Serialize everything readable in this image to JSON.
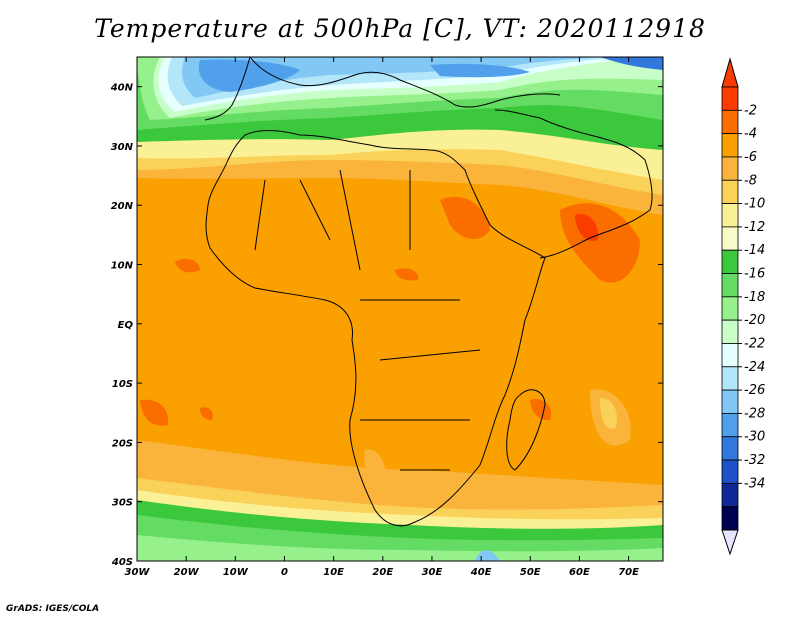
{
  "title": "Temperature at 500hPa [C], VT: 2020112918",
  "credit": "GrADS: IGES/COLA",
  "map": {
    "region": "Africa",
    "projection": "latlon",
    "lon_range": [
      -30,
      77
    ],
    "lat_range": [
      -40,
      45
    ],
    "lon_ticks": [
      {
        "value": -30,
        "label": "30W"
      },
      {
        "value": -20,
        "label": "20W"
      },
      {
        "value": -10,
        "label": "10W"
      },
      {
        "value": 0,
        "label": "0"
      },
      {
        "value": 10,
        "label": "10E"
      },
      {
        "value": 20,
        "label": "20E"
      },
      {
        "value": 30,
        "label": "30E"
      },
      {
        "value": 40,
        "label": "40E"
      },
      {
        "value": 50,
        "label": "50E"
      },
      {
        "value": 60,
        "label": "60E"
      },
      {
        "value": 70,
        "label": "70E"
      }
    ],
    "lat_ticks": [
      {
        "value": 40,
        "label": "40N"
      },
      {
        "value": 30,
        "label": "30N"
      },
      {
        "value": 20,
        "label": "20N"
      },
      {
        "value": 10,
        "label": "10N"
      },
      {
        "value": 0,
        "label": "EQ"
      },
      {
        "value": -10,
        "label": "10S"
      },
      {
        "value": -20,
        "label": "20S"
      },
      {
        "value": -30,
        "label": "30S"
      },
      {
        "value": -40,
        "label": "40S"
      }
    ]
  },
  "colorbar": {
    "labels": [
      "-2",
      "-4",
      "-6",
      "-8",
      "-10",
      "-12",
      "-14",
      "-16",
      "-18",
      "-20",
      "-22",
      "-24",
      "-26",
      "-28",
      "-30",
      "-32",
      "-34"
    ],
    "colors": [
      "#fa3c00",
      "#fa6e00",
      "#faa000",
      "#fab43c",
      "#fad25a",
      "#faf096",
      "#fafac8",
      "#3cc83c",
      "#64dc64",
      "#96f08c",
      "#c8ffc8",
      "#e6ffff",
      "#b4e6fa",
      "#82c8f5",
      "#50a0eb",
      "#3278dc",
      "#1e50c8",
      "#0f2896",
      "#000050"
    ],
    "top_arrow_color": "#fa3c00",
    "bottom_arrow_color": "#e6e6ff"
  }
}
